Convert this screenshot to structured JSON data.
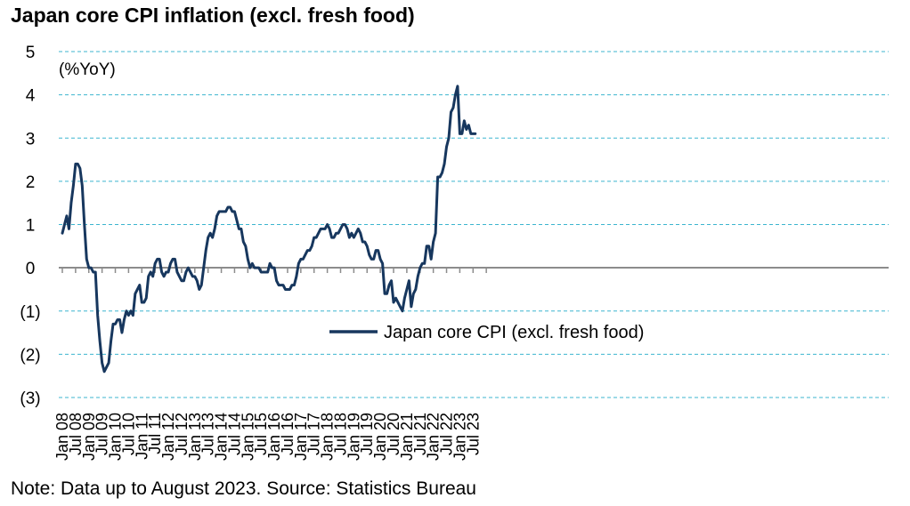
{
  "title": "Japan core CPI inflation (excl. fresh food)",
  "note": "Note: Data up to August 2023. Source: Statistics Bureau",
  "colors": {
    "series": "#17375e",
    "grid": "#3cb5cf",
    "axis": "#8c8c8c"
  },
  "chart_data": {
    "type": "line",
    "title": "Japan core CPI inflation (excl. fresh food)",
    "unit_label": "(%YoY)",
    "ylim": [
      -3,
      5
    ],
    "y_ticks": [
      5,
      4,
      3,
      2,
      1,
      0,
      -1,
      -2,
      -3
    ],
    "y_tick_labels": [
      "5",
      "4",
      "3",
      "2",
      "1",
      "0",
      "(1)",
      "(2)",
      "(3)"
    ],
    "x_tick_labels": [
      "Jan 08",
      "Jul 08",
      "Jan 09",
      "Jul 09",
      "Jan 10",
      "Jul 10",
      "Jan 11",
      "Jul 11",
      "Jan 12",
      "Jul 12",
      "Jan 13",
      "Jul 13",
      "Jan 14",
      "Jul 14",
      "Jan 15",
      "Jul 15",
      "Jan 16",
      "Jul 16",
      "Jan 17",
      "Jul 17",
      "Jan 18",
      "Jul 18",
      "Jan 19",
      "Jul 19",
      "Jan 20",
      "Jul 20",
      "Jan 21",
      "Jul 21",
      "Jan 22",
      "Jul 22",
      "Jan 23",
      "Jul 23"
    ],
    "grid": "horizontal dashed",
    "legend_position": "center",
    "series": [
      {
        "name": "Japan core CPI (excl. fresh food)",
        "start": "Jan 08",
        "end": "Aug 23",
        "values": [
          0.8,
          1.0,
          1.2,
          0.9,
          1.5,
          1.9,
          2.4,
          2.4,
          2.3,
          1.9,
          1.0,
          0.2,
          0.0,
          0.0,
          -0.1,
          -0.1,
          -1.1,
          -1.7,
          -2.2,
          -2.4,
          -2.3,
          -2.2,
          -1.7,
          -1.3,
          -1.3,
          -1.2,
          -1.2,
          -1.5,
          -1.2,
          -1.0,
          -1.1,
          -1.0,
          -1.1,
          -0.6,
          -0.5,
          -0.4,
          -0.8,
          -0.8,
          -0.7,
          -0.2,
          -0.1,
          -0.2,
          0.1,
          0.2,
          0.2,
          -0.1,
          -0.2,
          -0.1,
          -0.1,
          0.1,
          0.2,
          0.2,
          -0.1,
          -0.2,
          -0.3,
          -0.3,
          -0.1,
          0.0,
          -0.1,
          -0.2,
          -0.2,
          -0.3,
          -0.5,
          -0.4,
          0.0,
          0.4,
          0.7,
          0.8,
          0.7,
          0.9,
          1.2,
          1.3,
          1.3,
          1.3,
          1.3,
          1.4,
          1.4,
          1.3,
          1.3,
          1.1,
          0.9,
          0.9,
          0.6,
          0.5,
          0.2,
          0.0,
          0.1,
          0.0,
          0.0,
          0.0,
          -0.1,
          -0.1,
          -0.1,
          -0.1,
          0.1,
          0.0,
          0.0,
          -0.3,
          -0.4,
          -0.4,
          -0.4,
          -0.5,
          -0.5,
          -0.5,
          -0.4,
          -0.4,
          -0.2,
          0.1,
          0.2,
          0.2,
          0.3,
          0.4,
          0.4,
          0.5,
          0.7,
          0.7,
          0.8,
          0.9,
          0.9,
          0.9,
          1.0,
          0.9,
          0.7,
          0.7,
          0.8,
          0.8,
          0.9,
          1.0,
          1.0,
          0.9,
          0.7,
          0.8,
          0.7,
          0.8,
          0.9,
          0.8,
          0.6,
          0.6,
          0.5,
          0.3,
          0.2,
          0.2,
          0.4,
          0.4,
          0.2,
          0.1,
          -0.6,
          -0.6,
          -0.4,
          -0.3,
          -0.8,
          -0.7,
          -0.8,
          -0.9,
          -1.0,
          -0.7,
          -0.5,
          -0.3,
          -0.9,
          -0.6,
          -0.5,
          -0.2,
          0.0,
          0.1,
          0.1,
          0.5,
          0.5,
          0.2,
          0.6,
          0.8,
          2.1,
          2.1,
          2.2,
          2.4,
          2.8,
          3.0,
          3.6,
          3.7,
          4.0,
          4.2,
          3.1,
          3.1,
          3.4,
          3.2,
          3.3,
          3.1,
          3.1,
          3.1
        ]
      }
    ]
  }
}
